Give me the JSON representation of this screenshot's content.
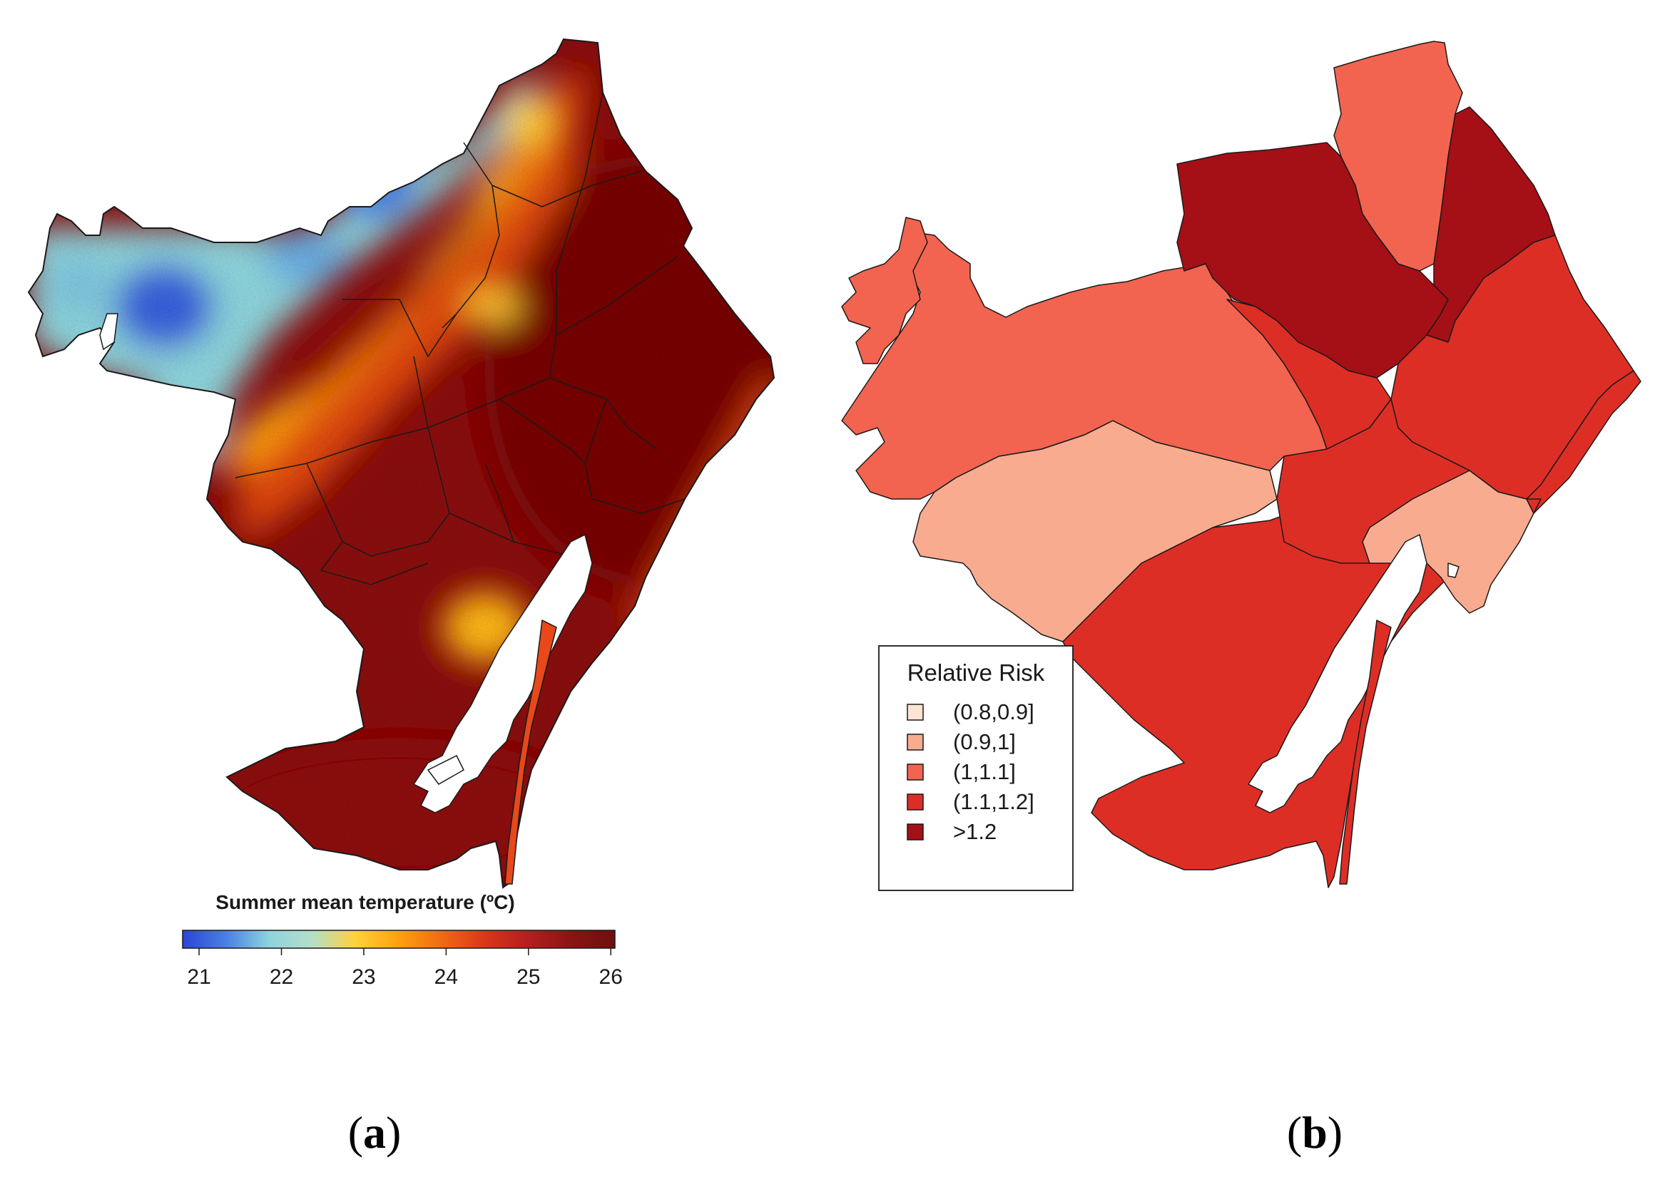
{
  "panels": [
    {
      "label_open": "(",
      "label_letter": "a",
      "label_close": ")",
      "legend_title": "Summer mean temperature (ºC)",
      "colorbar_ticks": [
        "21",
        "22",
        "23",
        "24",
        "25",
        "26"
      ],
      "colorbar_range": [
        20.8,
        26.05
      ],
      "colorbar_colors": [
        "#2a44d8",
        "#4a7fe3",
        "#8fd3dd",
        "#b4dfc8",
        "#ffd23a",
        "#ffa010",
        "#f06a12",
        "#d8361a",
        "#b51e1e",
        "#8a1313",
        "#6f0f0f"
      ]
    },
    {
      "label_open": "(",
      "label_letter": "b",
      "label_close": ")",
      "legend_title": "Relative Risk",
      "legend_items": [
        {
          "label": "(0.8,0.9]",
          "color": "#fde3d6"
        },
        {
          "label": "(0.9,1]",
          "color": "#f9ab90"
        },
        {
          "label": "(1,1.1]",
          "color": "#f26450"
        },
        {
          "label": "(1.1,1.2]",
          "color": "#dd2e26"
        },
        {
          "label": ">1.2",
          "color": "#a50f16"
        }
      ]
    }
  ],
  "colors": {
    "outline": "#1a1a1a",
    "risk_0_9_1": "#f9ab90",
    "risk_1_1_1": "#f26450",
    "risk_1_1_1_2": "#dd2e26",
    "risk_gt_1_2": "#a50f16"
  }
}
